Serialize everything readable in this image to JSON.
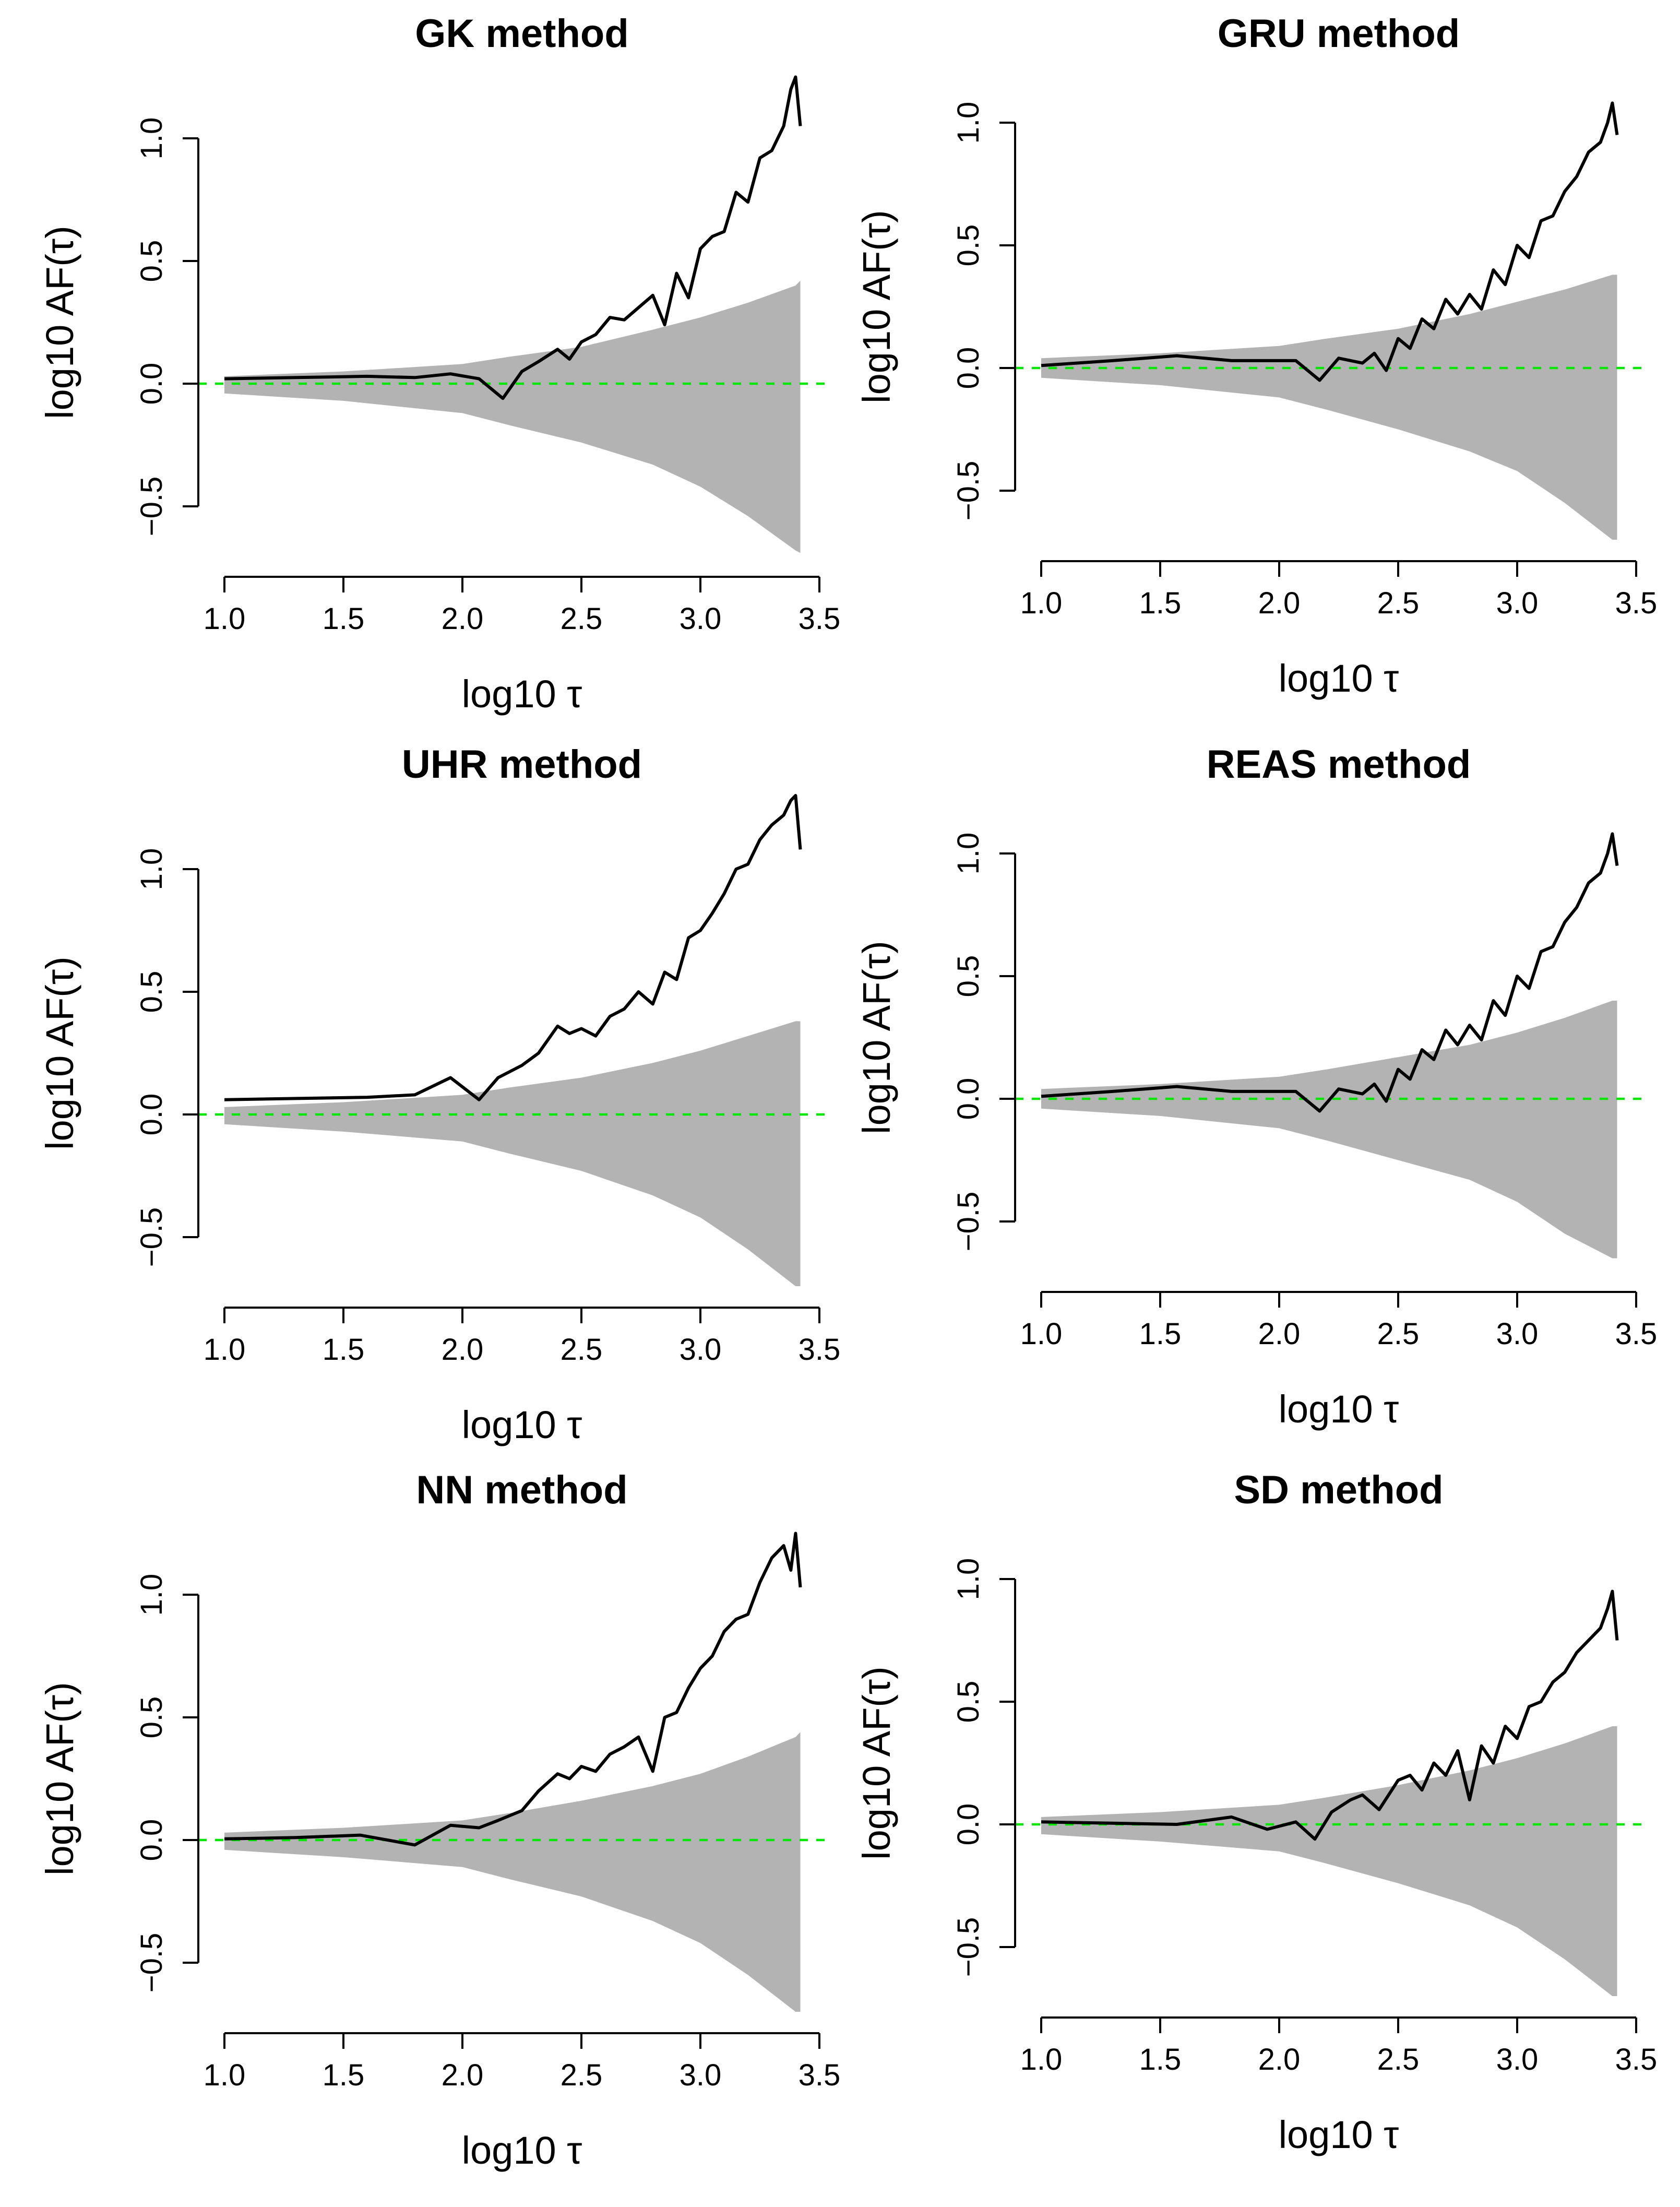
{
  "chart_data": [
    {
      "type": "line",
      "title": "GK method",
      "xlabel": "log10 τ",
      "ylabel": "log10 AF(τ)",
      "xlim": [
        1.0,
        3.5
      ],
      "ylim": [
        -0.5,
        1.0
      ],
      "xticks": [
        "1.0",
        "1.5",
        "2.0",
        "2.5",
        "3.0",
        "3.5"
      ],
      "yticks": [
        "−0.5",
        "0.0",
        "0.5",
        "1.0"
      ],
      "reference_line": {
        "y": 0,
        "color": "#00e600",
        "style": "dashed"
      },
      "band_color": "#b3b3b3",
      "band": {
        "x": [
          1.0,
          1.5,
          2.0,
          2.2,
          2.5,
          2.8,
          3.0,
          3.2,
          3.4,
          3.42
        ],
        "upper": [
          0.03,
          0.05,
          0.08,
          0.11,
          0.15,
          0.22,
          0.27,
          0.33,
          0.4,
          0.42
        ],
        "lower": [
          -0.04,
          -0.07,
          -0.12,
          -0.17,
          -0.24,
          -0.33,
          -0.42,
          -0.54,
          -0.68,
          -0.69
        ]
      },
      "series": [
        {
          "name": "log10 AF(τ)",
          "color": "#000000",
          "x": [
            1.0,
            1.3,
            1.6,
            1.8,
            1.95,
            2.07,
            2.17,
            2.25,
            2.32,
            2.4,
            2.45,
            2.5,
            2.56,
            2.62,
            2.68,
            2.74,
            2.8,
            2.85,
            2.9,
            2.95,
            3.0,
            3.05,
            3.1,
            3.15,
            3.2,
            3.25,
            3.3,
            3.35,
            3.38,
            3.4,
            3.42
          ],
          "values": [
            0.02,
            0.025,
            0.03,
            0.025,
            0.04,
            0.02,
            -0.06,
            0.05,
            0.09,
            0.14,
            0.1,
            0.17,
            0.2,
            0.27,
            0.26,
            0.31,
            0.36,
            0.24,
            0.45,
            0.35,
            0.55,
            0.6,
            0.62,
            0.78,
            0.74,
            0.92,
            0.95,
            1.05,
            1.2,
            1.25,
            1.05
          ]
        }
      ]
    },
    {
      "type": "line",
      "title": "GRU method",
      "xlabel": "log10 τ",
      "ylabel": "log10 AF(τ)",
      "xlim": [
        1.0,
        3.5
      ],
      "ylim": [
        -0.5,
        1.0
      ],
      "xticks": [
        "1.0",
        "1.5",
        "2.0",
        "2.5",
        "3.0",
        "3.5"
      ],
      "yticks": [
        "−0.5",
        "0.0",
        "0.5",
        "1.0"
      ],
      "reference_line": {
        "y": 0,
        "color": "#00e600",
        "style": "dashed"
      },
      "band_color": "#b3b3b3",
      "band": {
        "x": [
          1.0,
          1.5,
          2.0,
          2.2,
          2.5,
          2.8,
          3.0,
          3.2,
          3.4,
          3.42
        ],
        "upper": [
          0.04,
          0.06,
          0.09,
          0.12,
          0.16,
          0.22,
          0.27,
          0.32,
          0.38,
          0.38
        ],
        "lower": [
          -0.04,
          -0.07,
          -0.12,
          -0.17,
          -0.25,
          -0.34,
          -0.42,
          -0.55,
          -0.7,
          -0.7
        ]
      },
      "series": [
        {
          "name": "log10 AF(τ)",
          "color": "#000000",
          "x": [
            1.0,
            1.3,
            1.57,
            1.8,
            2.07,
            2.17,
            2.25,
            2.35,
            2.4,
            2.45,
            2.5,
            2.55,
            2.6,
            2.65,
            2.7,
            2.75,
            2.8,
            2.85,
            2.9,
            2.95,
            3.0,
            3.05,
            3.1,
            3.15,
            3.2,
            3.25,
            3.3,
            3.35,
            3.38,
            3.4,
            3.42
          ],
          "values": [
            0.01,
            0.03,
            0.05,
            0.03,
            0.03,
            -0.05,
            0.04,
            0.02,
            0.06,
            -0.01,
            0.12,
            0.08,
            0.2,
            0.16,
            0.28,
            0.22,
            0.3,
            0.24,
            0.4,
            0.34,
            0.5,
            0.45,
            0.6,
            0.62,
            0.72,
            0.78,
            0.88,
            0.92,
            1.0,
            1.08,
            0.95
          ]
        }
      ]
    },
    {
      "type": "line",
      "title": "UHR method",
      "xlabel": "log10 τ",
      "ylabel": "log10 AF(τ)",
      "xlim": [
        1.0,
        3.5
      ],
      "ylim": [
        -0.5,
        1.0
      ],
      "xticks": [
        "1.0",
        "1.5",
        "2.0",
        "2.5",
        "3.0",
        "3.5"
      ],
      "yticks": [
        "−0.5",
        "0.0",
        "0.5",
        "1.0"
      ],
      "reference_line": {
        "y": 0,
        "color": "#00e600",
        "style": "dashed"
      },
      "band_color": "#b3b3b3",
      "band": {
        "x": [
          1.0,
          1.5,
          2.0,
          2.2,
          2.5,
          2.8,
          3.0,
          3.2,
          3.4,
          3.42
        ],
        "upper": [
          0.03,
          0.05,
          0.08,
          0.11,
          0.15,
          0.21,
          0.26,
          0.32,
          0.38,
          0.38
        ],
        "lower": [
          -0.04,
          -0.07,
          -0.11,
          -0.16,
          -0.23,
          -0.33,
          -0.42,
          -0.55,
          -0.7,
          -0.7
        ]
      },
      "series": [
        {
          "name": "log10 AF(τ)",
          "color": "#000000",
          "x": [
            1.0,
            1.3,
            1.6,
            1.8,
            1.95,
            2.07,
            2.15,
            2.25,
            2.32,
            2.4,
            2.45,
            2.5,
            2.56,
            2.62,
            2.68,
            2.74,
            2.8,
            2.85,
            2.9,
            2.95,
            3.0,
            3.05,
            3.1,
            3.15,
            3.2,
            3.25,
            3.3,
            3.35,
            3.38,
            3.4,
            3.42
          ],
          "values": [
            0.06,
            0.065,
            0.07,
            0.08,
            0.15,
            0.06,
            0.15,
            0.2,
            0.25,
            0.36,
            0.33,
            0.35,
            0.32,
            0.4,
            0.43,
            0.5,
            0.45,
            0.58,
            0.55,
            0.72,
            0.75,
            0.82,
            0.9,
            1.0,
            1.02,
            1.12,
            1.18,
            1.22,
            1.28,
            1.3,
            1.08
          ]
        }
      ]
    },
    {
      "type": "line",
      "title": "REAS method",
      "xlabel": "log10 τ",
      "ylabel": "log10 AF(τ)",
      "xlim": [
        1.0,
        3.5
      ],
      "ylim": [
        -0.5,
        1.0
      ],
      "xticks": [
        "1.0",
        "1.5",
        "2.0",
        "2.5",
        "3.0",
        "3.5"
      ],
      "yticks": [
        "−0.5",
        "0.0",
        "0.5",
        "1.0"
      ],
      "reference_line": {
        "y": 0,
        "color": "#00e600",
        "style": "dashed"
      },
      "band_color": "#b3b3b3",
      "band": {
        "x": [
          1.0,
          1.5,
          2.0,
          2.2,
          2.5,
          2.8,
          3.0,
          3.2,
          3.4,
          3.42
        ],
        "upper": [
          0.04,
          0.06,
          0.09,
          0.12,
          0.17,
          0.22,
          0.27,
          0.33,
          0.4,
          0.4
        ],
        "lower": [
          -0.04,
          -0.07,
          -0.12,
          -0.17,
          -0.25,
          -0.33,
          -0.42,
          -0.55,
          -0.65,
          -0.65
        ]
      },
      "series": [
        {
          "name": "log10 AF(τ)",
          "color": "#000000",
          "x": [
            1.0,
            1.3,
            1.57,
            1.8,
            2.07,
            2.17,
            2.25,
            2.35,
            2.4,
            2.45,
            2.5,
            2.55,
            2.6,
            2.65,
            2.7,
            2.75,
            2.8,
            2.85,
            2.9,
            2.95,
            3.0,
            3.05,
            3.1,
            3.15,
            3.2,
            3.25,
            3.3,
            3.35,
            3.38,
            3.4,
            3.42
          ],
          "values": [
            0.01,
            0.03,
            0.05,
            0.03,
            0.03,
            -0.05,
            0.04,
            0.02,
            0.06,
            -0.01,
            0.12,
            0.08,
            0.2,
            0.16,
            0.28,
            0.22,
            0.3,
            0.24,
            0.4,
            0.34,
            0.5,
            0.45,
            0.6,
            0.62,
            0.72,
            0.78,
            0.88,
            0.92,
            1.0,
            1.08,
            0.95
          ]
        }
      ]
    },
    {
      "type": "line",
      "title": "NN method",
      "xlabel": "log10 τ",
      "ylabel": "log10 AF(τ)",
      "xlim": [
        1.0,
        3.5
      ],
      "ylim": [
        -0.5,
        1.0
      ],
      "xticks": [
        "1.0",
        "1.5",
        "2.0",
        "2.5",
        "3.0",
        "3.5"
      ],
      "yticks": [
        "−0.5",
        "0.0",
        "0.5",
        "1.0"
      ],
      "reference_line": {
        "y": 0,
        "color": "#00e600",
        "style": "dashed"
      },
      "band_color": "#b3b3b3",
      "band": {
        "x": [
          1.0,
          1.5,
          2.0,
          2.2,
          2.5,
          2.8,
          3.0,
          3.2,
          3.4,
          3.42
        ],
        "upper": [
          0.03,
          0.05,
          0.08,
          0.11,
          0.16,
          0.22,
          0.27,
          0.34,
          0.42,
          0.44
        ],
        "lower": [
          -0.04,
          -0.07,
          -0.11,
          -0.16,
          -0.23,
          -0.33,
          -0.42,
          -0.55,
          -0.7,
          -0.7
        ]
      },
      "series": [
        {
          "name": "log10 AF(τ)",
          "color": "#000000",
          "x": [
            1.0,
            1.3,
            1.57,
            1.8,
            1.95,
            2.07,
            2.15,
            2.25,
            2.32,
            2.4,
            2.45,
            2.5,
            2.56,
            2.62,
            2.68,
            2.74,
            2.8,
            2.85,
            2.9,
            2.95,
            3.0,
            3.05,
            3.1,
            3.15,
            3.2,
            3.25,
            3.3,
            3.35,
            3.38,
            3.4,
            3.42
          ],
          "values": [
            0.005,
            0.01,
            0.02,
            -0.02,
            0.06,
            0.05,
            0.08,
            0.12,
            0.2,
            0.27,
            0.25,
            0.3,
            0.28,
            0.35,
            0.38,
            0.42,
            0.28,
            0.5,
            0.52,
            0.62,
            0.7,
            0.75,
            0.85,
            0.9,
            0.92,
            1.05,
            1.15,
            1.2,
            1.1,
            1.25,
            1.03
          ]
        }
      ]
    },
    {
      "type": "line",
      "title": "SD method",
      "xlabel": "log10 τ",
      "ylabel": "log10 AF(τ)",
      "xlim": [
        1.0,
        3.5
      ],
      "ylim": [
        -0.5,
        1.0
      ],
      "xticks": [
        "1.0",
        "1.5",
        "2.0",
        "2.5",
        "3.0",
        "3.5"
      ],
      "yticks": [
        "−0.5",
        "0.0",
        "0.5",
        "1.0"
      ],
      "reference_line": {
        "y": 0,
        "color": "#00e600",
        "style": "dashed"
      },
      "band_color": "#b3b3b3",
      "band": {
        "x": [
          1.0,
          1.5,
          2.0,
          2.2,
          2.5,
          2.8,
          3.0,
          3.2,
          3.4,
          3.42
        ],
        "upper": [
          0.03,
          0.05,
          0.08,
          0.11,
          0.16,
          0.22,
          0.27,
          0.33,
          0.4,
          0.4
        ],
        "lower": [
          -0.04,
          -0.07,
          -0.11,
          -0.16,
          -0.24,
          -0.33,
          -0.42,
          -0.55,
          -0.7,
          -0.7
        ]
      },
      "series": [
        {
          "name": "log10 AF(τ)",
          "color": "#000000",
          "x": [
            1.0,
            1.3,
            1.57,
            1.8,
            1.95,
            2.07,
            2.15,
            2.22,
            2.3,
            2.35,
            2.42,
            2.5,
            2.55,
            2.6,
            2.65,
            2.7,
            2.75,
            2.8,
            2.85,
            2.9,
            2.95,
            3.0,
            3.05,
            3.1,
            3.15,
            3.2,
            3.25,
            3.3,
            3.35,
            3.38,
            3.4,
            3.42
          ],
          "values": [
            0.01,
            0.005,
            0.0,
            0.03,
            -0.02,
            0.01,
            -0.06,
            0.05,
            0.1,
            0.12,
            0.06,
            0.18,
            0.2,
            0.14,
            0.25,
            0.2,
            0.3,
            0.1,
            0.32,
            0.25,
            0.4,
            0.35,
            0.48,
            0.5,
            0.58,
            0.62,
            0.7,
            0.75,
            0.8,
            0.88,
            0.95,
            0.75
          ]
        }
      ]
    }
  ]
}
